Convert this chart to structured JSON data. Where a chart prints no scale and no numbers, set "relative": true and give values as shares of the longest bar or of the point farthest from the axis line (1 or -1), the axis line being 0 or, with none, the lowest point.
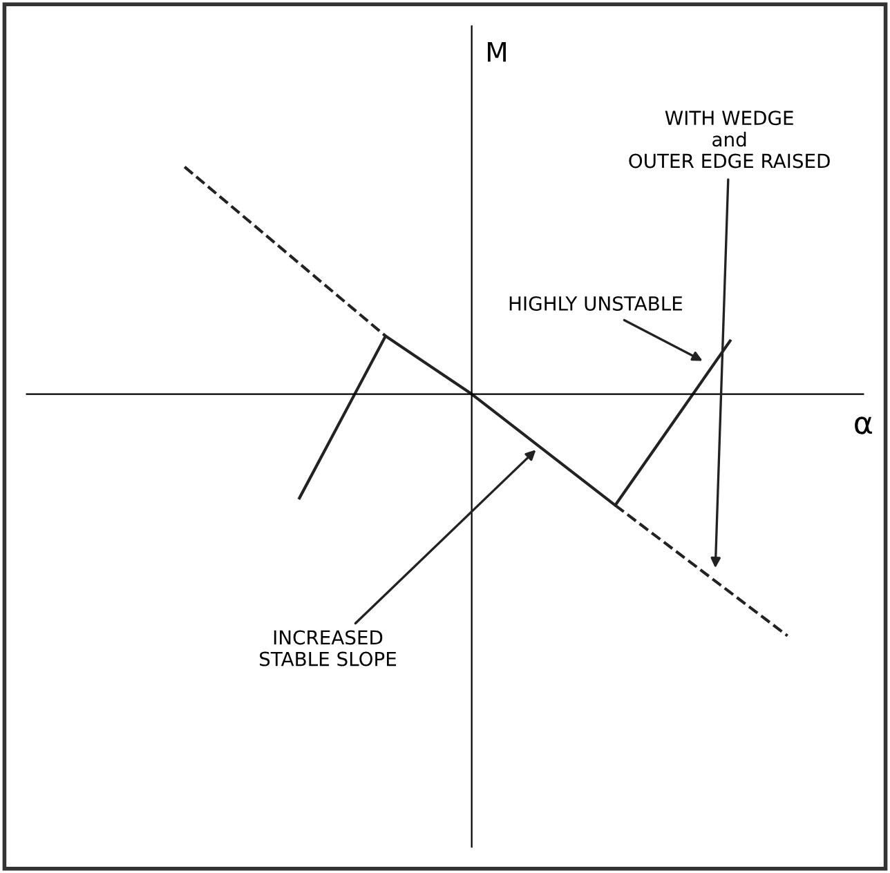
{
  "chart_data": {
    "type": "line",
    "relative": true,
    "xlabel": "α",
    "ylabel": "M",
    "categories": [
      null,
      null,
      null,
      null,
      null,
      null,
      null,
      null,
      null,
      null,
      null,
      null,
      null,
      null,
      null,
      null,
      null,
      null,
      null,
      null,
      null,
      null
    ],
    "series": [
      {
        "color": "#222222",
        "line_style": "solid",
        "values": [
          null,
          null,
          null,
          null,
          -0.43,
          null,
          null,
          0.24,
          null,
          null,
          0,
          null,
          null,
          null,
          null,
          -0.46,
          null,
          null,
          null,
          0.22,
          null,
          null
        ]
      },
      {
        "color": "#222222",
        "line_style": "dashed",
        "values": [
          0.94,
          null,
          null,
          null,
          null,
          null,
          null,
          0.24,
          null,
          null,
          null,
          null,
          null,
          null,
          null,
          null,
          null,
          null,
          null,
          null,
          null,
          null
        ]
      },
      {
        "color": "#222222",
        "line_style": "dashed",
        "values": [
          null,
          null,
          null,
          null,
          null,
          null,
          null,
          null,
          null,
          null,
          null,
          null,
          null,
          null,
          null,
          -0.46,
          null,
          null,
          null,
          null,
          null,
          -1
        ]
      }
    ],
    "annotations": [
      "WITH WEDGE\nand\nOUTER EDGE RAISED",
      "HIGHLY UNSTABLE",
      "INCREASED\nSTABLE SLOPE"
    ],
    "legend": false,
    "marker": "none"
  }
}
